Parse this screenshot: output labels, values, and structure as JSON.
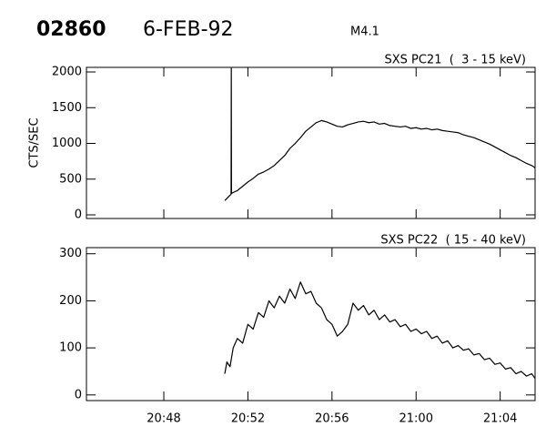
{
  "header": {
    "id": "02860",
    "date": "6-FEB-92",
    "class": "M4.1"
  },
  "chart_data": [
    {
      "type": "line",
      "title": "SXS PC21  (  3 - 15 keV)",
      "ylabel": "CTS/SEC",
      "color": "#000000",
      "xlim": [
        44.32,
        65.66
      ],
      "xticks": [
        48,
        52,
        56,
        60,
        64
      ],
      "ylim": [
        -51,
        2064
      ],
      "yticks": [
        0,
        500,
        1000,
        1500,
        2000
      ],
      "x": [
        50.9,
        51.0,
        51.1,
        51.2,
        51.21,
        51.22,
        51.35,
        51.5,
        51.75,
        52,
        52.25,
        52.5,
        52.75,
        53,
        53.25,
        53.5,
        53.75,
        54,
        54.25,
        54.5,
        54.75,
        55,
        55.25,
        55.5,
        55.75,
        56,
        56.25,
        56.5,
        56.75,
        57,
        57.25,
        57.5,
        57.75,
        58,
        58.25,
        58.5,
        58.75,
        59,
        59.25,
        59.5,
        59.75,
        60,
        60.25,
        60.5,
        60.75,
        61,
        61.25,
        61.5,
        61.75,
        62,
        62.25,
        62.5,
        62.75,
        63,
        63.25,
        63.5,
        63.75,
        64,
        64.25,
        64.5,
        64.75,
        65,
        65.25,
        65.5,
        65.66
      ],
      "values": [
        200,
        230,
        260,
        290,
        2050,
        300,
        320,
        340,
        400,
        460,
        510,
        570,
        600,
        640,
        690,
        760,
        830,
        930,
        1000,
        1080,
        1170,
        1230,
        1290,
        1320,
        1300,
        1270,
        1240,
        1230,
        1260,
        1280,
        1300,
        1310,
        1290,
        1300,
        1270,
        1280,
        1250,
        1240,
        1230,
        1240,
        1210,
        1220,
        1200,
        1210,
        1190,
        1200,
        1180,
        1170,
        1160,
        1150,
        1120,
        1100,
        1080,
        1050,
        1020,
        990,
        950,
        910,
        870,
        830,
        800,
        760,
        720,
        690,
        660
      ]
    },
    {
      "type": "line",
      "title": "SXS PC22  ( 15 - 40 keV)",
      "color": "#000000",
      "xlim": [
        44.32,
        65.66
      ],
      "xticks": [
        {
          "value": 48,
          "label": "20:48"
        },
        {
          "value": 52,
          "label": "20:52"
        },
        {
          "value": 56,
          "label": "20:56"
        },
        {
          "value": 60,
          "label": "21:00"
        },
        {
          "value": 64,
          "label": "21:04"
        }
      ],
      "ylim": [
        -12,
        313
      ],
      "yticks": [
        0,
        100,
        200,
        300
      ],
      "x": [
        50.9,
        51.0,
        51.15,
        51.3,
        51.5,
        51.75,
        52,
        52.25,
        52.5,
        52.75,
        53,
        53.25,
        53.5,
        53.75,
        54,
        54.25,
        54.5,
        54.75,
        55,
        55.25,
        55.5,
        55.75,
        56,
        56.25,
        56.5,
        56.75,
        57,
        57.25,
        57.5,
        57.75,
        58,
        58.25,
        58.5,
        58.75,
        59,
        59.25,
        59.5,
        59.75,
        60,
        60.25,
        60.5,
        60.75,
        61,
        61.25,
        61.5,
        61.75,
        62,
        62.25,
        62.5,
        62.75,
        63,
        63.25,
        63.5,
        63.75,
        64,
        64.25,
        64.5,
        64.75,
        65,
        65.25,
        65.5,
        65.66
      ],
      "values": [
        45,
        70,
        60,
        100,
        120,
        110,
        150,
        140,
        175,
        165,
        200,
        185,
        210,
        195,
        225,
        205,
        240,
        215,
        220,
        195,
        185,
        160,
        150,
        125,
        135,
        150,
        195,
        180,
        190,
        170,
        180,
        160,
        170,
        155,
        160,
        145,
        150,
        135,
        140,
        130,
        135,
        120,
        125,
        110,
        115,
        100,
        105,
        95,
        98,
        85,
        88,
        75,
        78,
        65,
        68,
        55,
        58,
        45,
        50,
        40,
        45,
        35
      ]
    }
  ]
}
